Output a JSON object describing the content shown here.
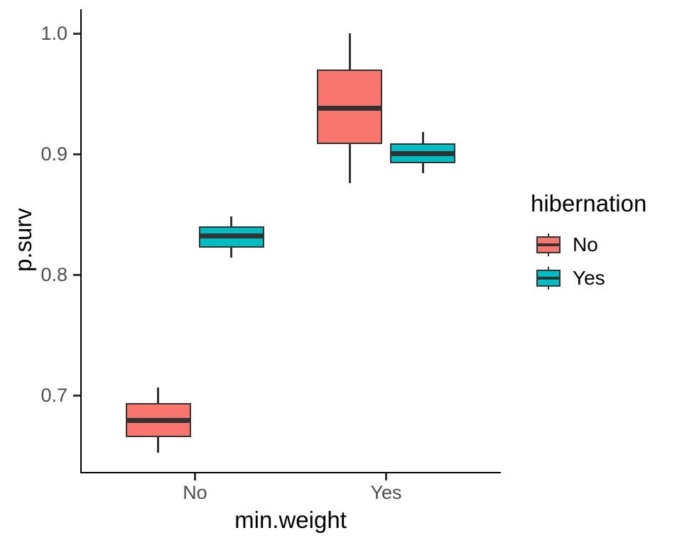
{
  "chart_data": {
    "type": "boxplot",
    "title": "",
    "xlabel": "min.weight",
    "ylabel": "p.surv",
    "categories": [
      "No",
      "Yes"
    ],
    "yticks": [
      {
        "value": 1.0,
        "label": "1.0"
      },
      {
        "value": 0.9,
        "label": "0.9"
      },
      {
        "value": 0.8,
        "label": "0.8"
      },
      {
        "value": 0.7,
        "label": "0.7"
      }
    ],
    "ylim": [
      0.635,
      1.02
    ],
    "grid": false,
    "legend": {
      "title": "hibernation",
      "position": "right",
      "entries": [
        {
          "label": "No",
          "color": "#F8766D"
        },
        {
          "label": "Yes",
          "color": "#00BFC4"
        }
      ]
    },
    "series": [
      {
        "name": "No",
        "color": "#F8766D",
        "boxes": [
          {
            "category": "No",
            "whisker_low": 0.652,
            "q1": 0.665,
            "median": 0.679,
            "q3": 0.693,
            "whisker_high": 0.706
          },
          {
            "category": "Yes",
            "whisker_low": 0.876,
            "q1": 0.908,
            "median": 0.938,
            "q3": 0.97,
            "whisker_high": 1.0
          }
        ]
      },
      {
        "name": "Yes",
        "color": "#00BFC4",
        "boxes": [
          {
            "category": "No",
            "whisker_low": 0.814,
            "q1": 0.822,
            "median": 0.832,
            "q3": 0.84,
            "whisker_high": 0.848
          },
          {
            "category": "Yes",
            "whisker_low": 0.884,
            "q1": 0.892,
            "median": 0.9,
            "q3": 0.909,
            "whisker_high": 0.918
          }
        ]
      }
    ],
    "style": {
      "box_stroke": "#333333",
      "axis_line": "#000000",
      "tick_color": "#333333",
      "tick_label_color": "#4D4D4D",
      "title_color": "#000000",
      "background": "#FFFFFF"
    }
  }
}
